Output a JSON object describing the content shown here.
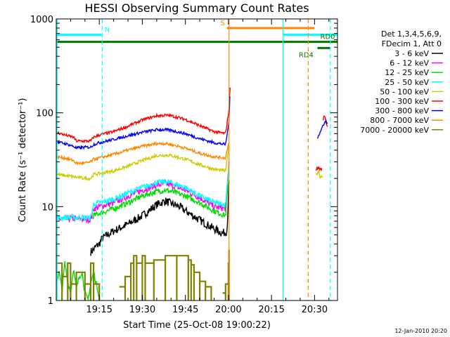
{
  "chart_data": {
    "type": "line",
    "title": "HESSI Observing Summary Count Rates",
    "xlabel": "Start Time (25-Oct-08 19:00:22)",
    "ylabel": "Count Rate (s⁻¹ detector⁻¹)",
    "x_unit": "minutes since 19:00:22",
    "xlim": [
      0,
      98
    ],
    "ylim": [
      1,
      1000
    ],
    "y_scale": "log",
    "x_ticks": [
      {
        "t": 15,
        "label": "19:15"
      },
      {
        "t": 30,
        "label": "19:30"
      },
      {
        "t": 45,
        "label": "19:45"
      },
      {
        "t": 60,
        "label": "20:00"
      },
      {
        "t": 75,
        "label": "20:15"
      },
      {
        "t": 90,
        "label": "20:30"
      }
    ],
    "y_ticks": [
      {
        "v": 1,
        "label": "1"
      },
      {
        "v": 10,
        "label": "10"
      },
      {
        "v": 100,
        "label": "100"
      },
      {
        "v": 1000,
        "label": "1000"
      }
    ],
    "legend_header": [
      "Det 1,3,4,5,6,9,",
      "FDecim 1, Att 0"
    ],
    "legend_position": "right",
    "footer": "12-Jan-2010 20:20",
    "series": [
      {
        "name": "3 - 6 keV",
        "color": "#000000",
        "noise": 0.1,
        "segments": [
          {
            "t": [
              12,
              13,
              14,
              15,
              16,
              20,
              25,
              30,
              35,
              38,
              40,
              43,
              45,
              50,
              55,
              58,
              59.5,
              60.2
            ],
            "v": [
              3.3,
              3.5,
              3.8,
              4.0,
              4.6,
              5.5,
              6.5,
              8.0,
              10.5,
              11.5,
              10.8,
              10.0,
              9.0,
              7.2,
              5.8,
              5.2,
              5.5,
              18
            ]
          }
        ]
      },
      {
        "name": "6 - 12 keV",
        "color": "#ff00ff",
        "noise": 0.08,
        "segments": [
          {
            "t": [
              0,
              5,
              10,
              12,
              13,
              15,
              20,
              25,
              30,
              35,
              38,
              40,
              45,
              50,
              55,
              59,
              60.2
            ],
            "v": [
              7.3,
              7.5,
              7.3,
              7.3,
              9.5,
              10,
              11,
              13,
              15,
              17,
              17.5,
              17,
              15,
              12.5,
              10,
              9.5,
              30
            ]
          }
        ]
      },
      {
        "name": "12 - 25 keV",
        "color": "#00dd00",
        "noise": 0.07,
        "segments": [
          {
            "t": [
              12.5,
              13,
              15,
              20,
              25,
              30,
              35,
              38,
              40,
              45,
              50,
              55,
              59,
              60.2
            ],
            "v": [
              7.5,
              8.0,
              8.5,
              9.5,
              11,
              13,
              14.5,
              15,
              14.5,
              13,
              11,
              9.0,
              8.0,
              25
            ]
          },
          {
            "t": [
              0,
              1,
              2,
              3,
              4,
              5,
              6,
              7,
              8,
              9,
              10,
              11,
              12,
              13,
              14,
              15
            ],
            "v": [
              1.6,
              2.0,
              1.3,
              2.5,
              1.6,
              1.2,
              2.2,
              1.3,
              1.8,
              2.0,
              1.2,
              1.0,
              1.5,
              2.0,
              1.5,
              1.1
            ]
          }
        ]
      },
      {
        "name": "25 - 50 keV",
        "color": "#00ffff",
        "noise": 0.07,
        "segments": [
          {
            "t": [
              0,
              5,
              10,
              12,
              13,
              15,
              20,
              25,
              30,
              35,
              38,
              40,
              45,
              50,
              55,
              59,
              60.2
            ],
            "v": [
              7.6,
              7.7,
              7.6,
              7.6,
              10.5,
              11,
              12,
              14,
              16,
              18,
              18.5,
              18,
              16,
              13,
              11,
              10.5,
              28
            ]
          }
        ]
      },
      {
        "name": "50 - 100 keV",
        "color": "#cccc00",
        "noise": 0.04,
        "segments": [
          {
            "t": [
              0,
              5,
              10,
              12,
              13,
              15,
              20,
              25,
              30,
              35,
              38,
              40,
              45,
              50,
              55,
              59,
              60.2
            ],
            "v": [
              22,
              21,
              20,
              20,
              22,
              22.5,
              24,
              27,
              31,
              35,
              35.5,
              35,
              32,
              28,
              25,
              24,
              45
            ]
          },
          {
            "t": [
              90.5,
              91.5,
              92,
              92.5,
              93
            ],
            "v": [
              22,
              24,
              20,
              22,
              20
            ]
          }
        ]
      },
      {
        "name": "100 - 300 keV",
        "color": "#ff0000",
        "noise": 0.035,
        "segments": [
          {
            "t": [
              0,
              3,
              6,
              7,
              10,
              12,
              13,
              15,
              20,
              25,
              30,
              35,
              38,
              40,
              45,
              50,
              55,
              59,
              60.2,
              60.6
            ],
            "v": [
              62,
              58,
              55,
              50,
              50,
              50,
              55,
              58,
              63,
              72,
              84,
              93,
              94,
              93,
              85,
              73,
              63,
              60,
              110,
              190
            ]
          },
          {
            "t": [
              90.5,
              91.5,
              92,
              92.5
            ],
            "v": [
              25,
              26,
              25,
              25
            ]
          },
          {
            "t": [
              93,
              93.5,
              94,
              94.5
            ],
            "v": [
              85,
              95,
              80,
              70
            ]
          }
        ]
      },
      {
        "name": "300 - 800 keV",
        "color": "#0000ee",
        "noise": 0.035,
        "segments": [
          {
            "t": [
              0,
              3,
              6,
              7,
              10,
              12,
              13,
              15,
              20,
              25,
              30,
              35,
              38,
              40,
              45,
              50,
              55,
              59,
              60.2,
              60.5
            ],
            "v": [
              49,
              47,
              44,
              42,
              43,
              43,
              46,
              48,
              52,
              57,
              62,
              66,
              66,
              65,
              60,
              53,
              48,
              46,
              80,
              150
            ]
          },
          {
            "t": [
              91,
              92,
              92.5,
              93,
              94,
              94.5
            ],
            "v": [
              55,
              62,
              68,
              75,
              82,
              78
            ]
          }
        ]
      },
      {
        "name": "800 - 7000 keV",
        "color": "#ff8800",
        "noise": 0.035,
        "segments": [
          {
            "t": [
              0,
              3,
              6,
              7,
              10,
              12,
              13,
              15,
              20,
              25,
              30,
              35,
              38,
              40,
              45,
              50,
              55,
              59,
              60.2
            ],
            "v": [
              34,
              33,
              31,
              29,
              29,
              30,
              32,
              33,
              36,
              40,
              44,
              47,
              47,
              46,
              42,
              37,
              34,
              33,
              50
            ]
          }
        ]
      },
      {
        "name": "7000 - 20000 keV",
        "color": "#808000",
        "noise": 0.0,
        "segments": [
          {
            "t": [
              0,
              2,
              4,
              5,
              7,
              10,
              12,
              13,
              15
            ],
            "v": [
              2.5,
              1.8,
              2.5,
              1.5,
              2.0,
              1.5,
              2.5,
              1.5,
              1.2
            ]
          },
          {
            "t": [
              22,
              24,
              26,
              27,
              28,
              30,
              31,
              34,
              38,
              42,
              46,
              47,
              48,
              50,
              52,
              54
            ],
            "v": [
              1.4,
              1.8,
              2.5,
              3.0,
              2.5,
              3.0,
              2.5,
              2.7,
              3.0,
              3.0,
              2.7,
              2.4,
              2.0,
              1.6,
              1.4,
              1.2
            ]
          },
          {
            "t": [
              58,
              59,
              60,
              60.2
            ],
            "v": [
              1.2,
              1.5,
              2.5,
              3.5
            ]
          }
        ]
      }
    ],
    "flags": [
      {
        "label": "N",
        "color": "#00ffff",
        "value": 680,
        "t_start": 0,
        "t_end": 15.8,
        "label_t": 16.8
      },
      {
        "label": "S",
        "color": "#ff8800",
        "value": 800,
        "t_start": 59.5,
        "t_end": 90,
        "label_t": 57.2
      },
      {
        "label": "",
        "color": "#00ffff",
        "value": 680,
        "t_start": 79,
        "t_end": 98,
        "label_t": null
      },
      {
        "label": "RD0",
        "color": "#007700",
        "value": 570,
        "t_start": 0,
        "t_end": 98,
        "label_t": 92
      },
      {
        "label": "RD4",
        "color": "#007700",
        "value": 490,
        "t_start": 91,
        "t_end": 95.5,
        "label_t": 84.5
      }
    ],
    "vlines": [
      {
        "t": 0.3,
        "color": "#00ffff",
        "style": "solid"
      },
      {
        "t": 16.0,
        "color": "#00ffff",
        "style": "dashed"
      },
      {
        "t": 60.2,
        "color": "#ff8800",
        "style": "solid"
      },
      {
        "t": 79.0,
        "color": "#00ffff",
        "style": "solid"
      },
      {
        "t": 87.8,
        "color": "#ff8800",
        "style": "dashed"
      },
      {
        "t": 95.5,
        "color": "#00ffff",
        "style": "dashed"
      }
    ]
  }
}
